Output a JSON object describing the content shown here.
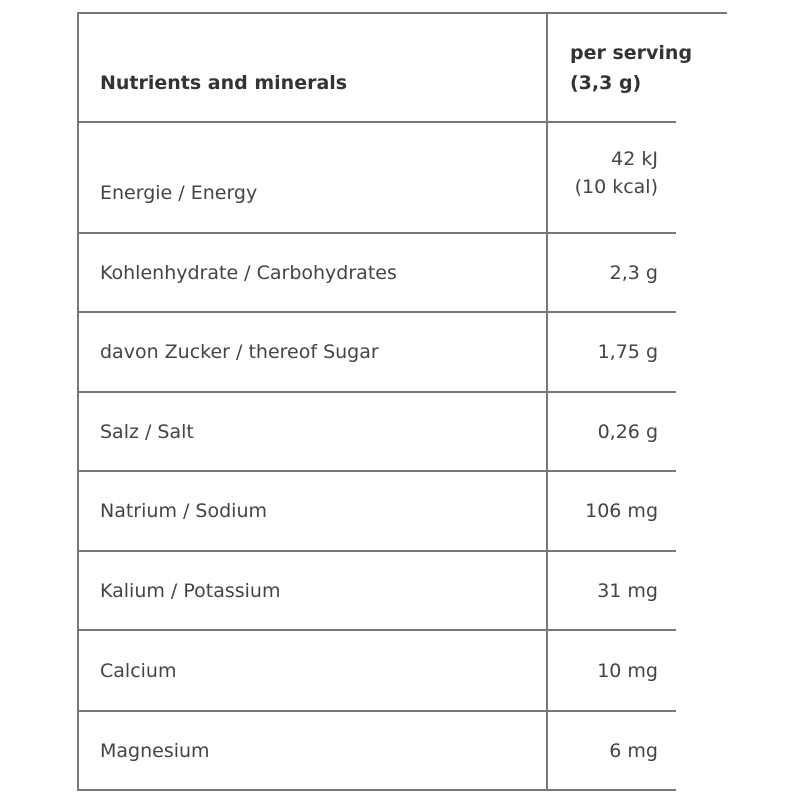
{
  "table": {
    "headers": [
      "Nutrients and minerals",
      "per serving (3,3 g)"
    ],
    "header_value_lines": [
      "per serving",
      "(3,3 g)"
    ],
    "rows": [
      {
        "name": "Energie / Energy",
        "value_lines": [
          "42 kJ",
          "(10 kcal)"
        ]
      },
      {
        "name": "Kohlenhydrate / Carbohydrates",
        "value": "2,3 g"
      },
      {
        "name": "davon Zucker / thereof Sugar",
        "value": "1,75 g"
      },
      {
        "name": "Salz / Salt",
        "value": "0,26 g"
      },
      {
        "name": "Natrium / Sodium",
        "value": "106 mg"
      },
      {
        "name": "Kalium / Potassium",
        "value": "31 mg"
      },
      {
        "name": "Calcium",
        "value": "10 mg"
      },
      {
        "name": "Magnesium",
        "value": "6 mg"
      }
    ]
  }
}
